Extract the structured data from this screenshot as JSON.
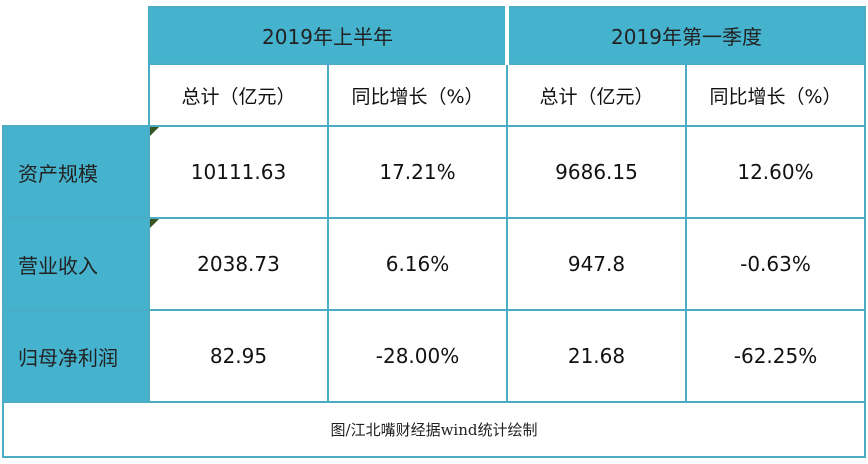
{
  "colors": {
    "header_bg": "#45b3ce",
    "border": "#4bacc6",
    "marker": "#375623",
    "background": "#ffffff"
  },
  "chart_data": {
    "type": "table",
    "column_groups": [
      {
        "label": "2019年上半年",
        "columns": [
          "总计（亿元）",
          "同比增长（%）"
        ]
      },
      {
        "label": "2019年第一季度",
        "columns": [
          "总计（亿元）",
          "同比增长（%）"
        ]
      }
    ],
    "sub_headers": [
      "总计（亿元）",
      "同比增长（%）",
      "总计（亿元）",
      "同比增长（%）"
    ],
    "rows": [
      {
        "label": "资产规模",
        "values": [
          "10111.63",
          "17.21%",
          "9686.15",
          "12.60%"
        ]
      },
      {
        "label": "营业收入",
        "values": [
          "2038.73",
          "6.16%",
          "947.8",
          "-0.63%"
        ]
      },
      {
        "label": "归母净利润",
        "values": [
          "82.95",
          "-28.00%",
          "21.68",
          "-62.25%"
        ]
      }
    ],
    "caption": "图/江北嘴财经据wind统计绘制"
  }
}
